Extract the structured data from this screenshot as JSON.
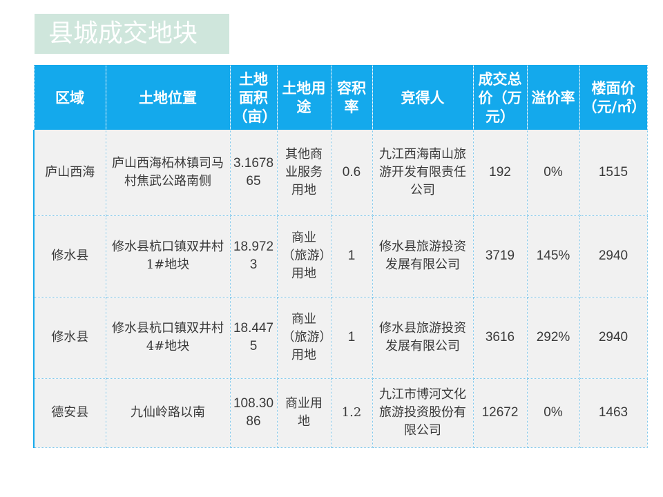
{
  "title": "县城成交地块",
  "table": {
    "headers": [
      "区域",
      "土地位置",
      "土地面积（亩）",
      "土地用途",
      "容积率",
      "竞得人",
      "成交总价（万元）",
      "溢价率",
      "楼面价（元/㎡）"
    ],
    "rows": [
      [
        "庐山西海",
        "庐山西海柘林镇司马村焦武公路南侧",
        "3.167865",
        "其他商业服务用地",
        "0.6",
        "九江西海南山旅游开发有限责任公司",
        "192",
        "0%",
        "1515"
      ],
      [
        "修水县",
        "修水县杭口镇双井村1#地块",
        "18.9723",
        "商业（旅游）用地",
        "1",
        "修水县旅游投资发展有限公司",
        "3719",
        "145%",
        "2940"
      ],
      [
        "修水县",
        "修水县杭口镇双井村4#地块",
        "18.4475",
        "商业（旅游）用地",
        "1",
        "修水县旅游投资发展有限公司",
        "3616",
        "292%",
        "2940"
      ],
      [
        "德安县",
        "九仙岭路以南",
        "108.3086",
        "商业用地",
        "1.2",
        "九江市博河文化旅游投资股份有限公司",
        "12672",
        "0%",
        "1463"
      ]
    ]
  },
  "colors": {
    "header_bg": "#14a9ec",
    "title_bg": "#cfe6dc",
    "row_bg": "#f1f1f1"
  }
}
